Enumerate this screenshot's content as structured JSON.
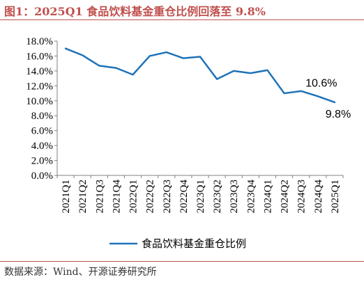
{
  "title": "图1：2025Q1 食品饮料基金重仓比例回落至 9.8%",
  "source": "数据来源：Wind、开源证券研究所",
  "colors": {
    "accent": "#c0504d",
    "line": "#1f72b8",
    "axis": "#808080"
  },
  "chart_data": {
    "type": "line",
    "title": "图1：2025Q1 食品饮料基金重仓比例回落至 9.8%",
    "xlabel": "",
    "ylabel": "",
    "ylim": [
      0,
      18
    ],
    "yticks": [
      "0.0%",
      "2.0%",
      "4.0%",
      "6.0%",
      "8.0%",
      "10.0%",
      "12.0%",
      "14.0%",
      "16.0%",
      "18.0%"
    ],
    "grid": false,
    "legend_position": "bottom",
    "categories": [
      "2021Q1",
      "2021Q2",
      "2021Q3",
      "2021Q4",
      "2022Q1",
      "2022Q2",
      "2022Q3",
      "2022Q4",
      "2023Q1",
      "2023Q2",
      "2023Q3",
      "2023Q4",
      "2024Q1",
      "2024Q2",
      "2024Q3",
      "2024Q4",
      "2025Q1"
    ],
    "series": [
      {
        "name": "食品饮料基金重仓比例",
        "values": [
          17.0,
          16.1,
          14.7,
          14.4,
          13.5,
          16.0,
          16.5,
          15.7,
          15.9,
          12.9,
          14.0,
          13.7,
          14.1,
          11.0,
          11.3,
          10.6,
          9.8
        ]
      }
    ],
    "annotations": [
      {
        "category": "2024Q4",
        "text": "10.6%"
      },
      {
        "category": "2025Q1",
        "text": "9.8%"
      }
    ]
  }
}
